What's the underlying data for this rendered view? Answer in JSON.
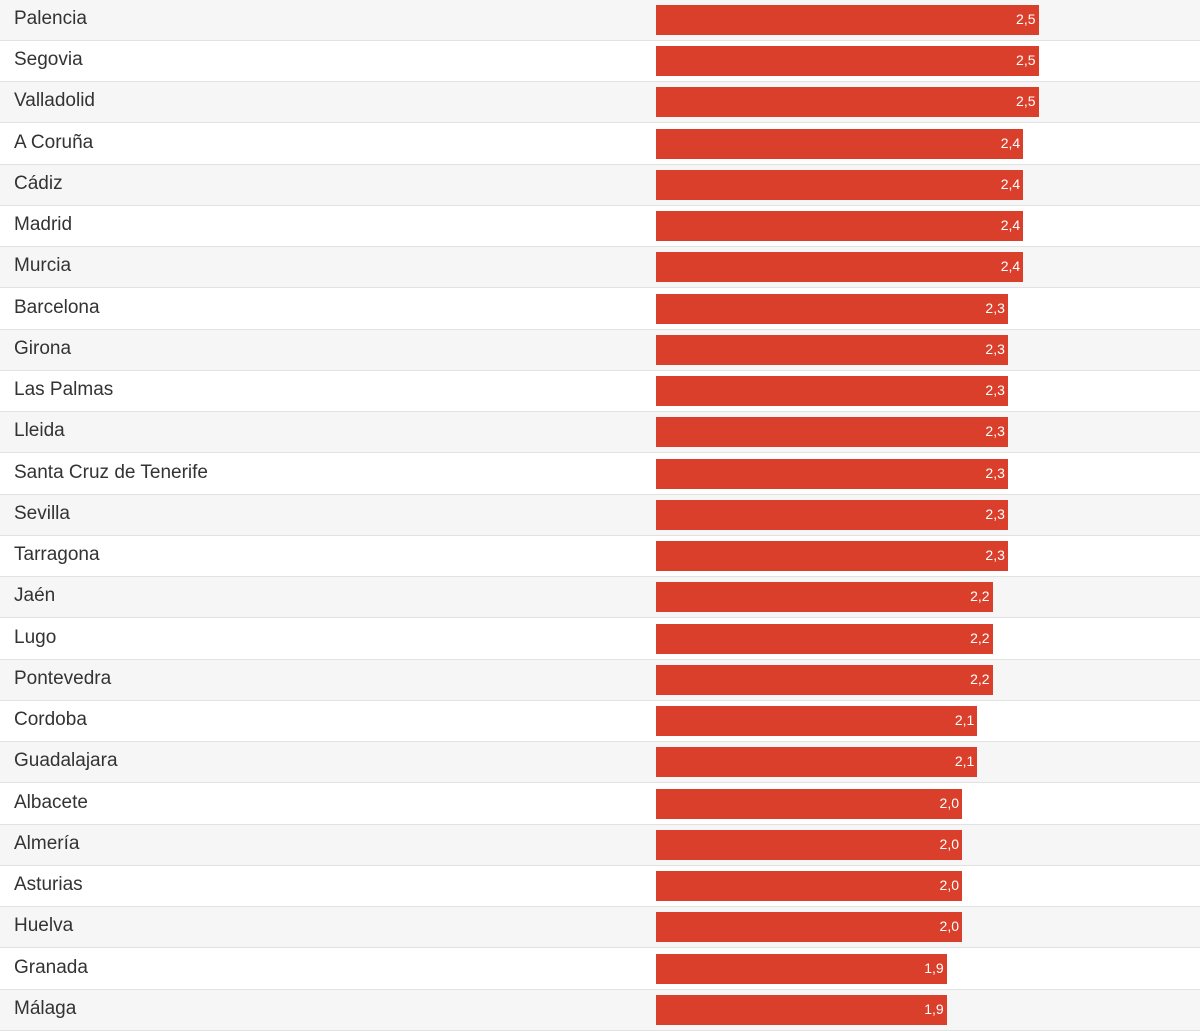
{
  "chart_data": {
    "type": "bar",
    "orientation": "horizontal",
    "categories": [
      "Palencia",
      "Segovia",
      "Valladolid",
      "A Coruña",
      "Cádiz",
      "Madrid",
      "Murcia",
      "Barcelona",
      "Girona",
      "Las Palmas",
      "Lleida",
      "Santa Cruz de Tenerife",
      "Sevilla",
      "Tarragona",
      "Jaén",
      "Lugo",
      "Pontevedra",
      "Cordoba",
      "Guadalajara",
      "Albacete",
      "Almería",
      "Asturias",
      "Huelva",
      "Granada",
      "Málaga"
    ],
    "values": [
      2.5,
      2.5,
      2.5,
      2.4,
      2.4,
      2.4,
      2.4,
      2.3,
      2.3,
      2.3,
      2.3,
      2.3,
      2.3,
      2.3,
      2.2,
      2.2,
      2.2,
      2.1,
      2.1,
      2.0,
      2.0,
      2.0,
      2.0,
      1.9,
      1.9
    ],
    "value_labels": [
      "2,5",
      "2,5",
      "2,5",
      "2,4",
      "2,4",
      "2,4",
      "2,4",
      "2,3",
      "2,3",
      "2,3",
      "2,3",
      "2,3",
      "2,3",
      "2,3",
      "2,2",
      "2,2",
      "2,2",
      "2,1",
      "2,1",
      "2,0",
      "2,0",
      "2,0",
      "2,0",
      "1,9",
      "1,9"
    ],
    "bar_color": "#d93f2b",
    "alternating_row_color": "#f6f6f6",
    "grid": false,
    "legend": "none"
  }
}
